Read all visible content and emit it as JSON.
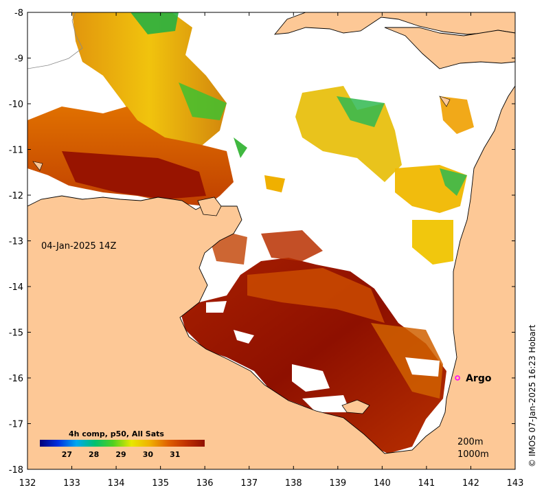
{
  "map": {
    "timestamp": "04-Jan-2025 14Z",
    "colorbar": {
      "title": "4h comp, p50, All Sats",
      "ticks": [
        "27",
        "28",
        "29",
        "30",
        "31"
      ],
      "colors": [
        "#00007a",
        "#0030e0",
        "#00a8f0",
        "#00c070",
        "#50d020",
        "#e8e800",
        "#f0b000",
        "#e06000",
        "#c03000",
        "#901000"
      ]
    },
    "markers": [
      {
        "label": "Argo",
        "lon": 141.7,
        "lat": -16.0,
        "color": "#ff00ff"
      }
    ],
    "isobaths": [
      "200m",
      "1000m"
    ],
    "credit": "© IMOS 07-Jan-2025 16:23 Hobart",
    "land_color": "#fdc896",
    "x_axis": {
      "ticks": [
        "132",
        "133",
        "134",
        "135",
        "136",
        "137",
        "138",
        "139",
        "140",
        "141",
        "142",
        "143"
      ],
      "range": [
        132,
        143
      ]
    },
    "y_axis": {
      "ticks": [
        "-8",
        "-9",
        "-10",
        "-11",
        "-12",
        "-13",
        "-14",
        "-15",
        "-16",
        "-17",
        "-18"
      ],
      "range": [
        -18,
        -8
      ]
    }
  }
}
